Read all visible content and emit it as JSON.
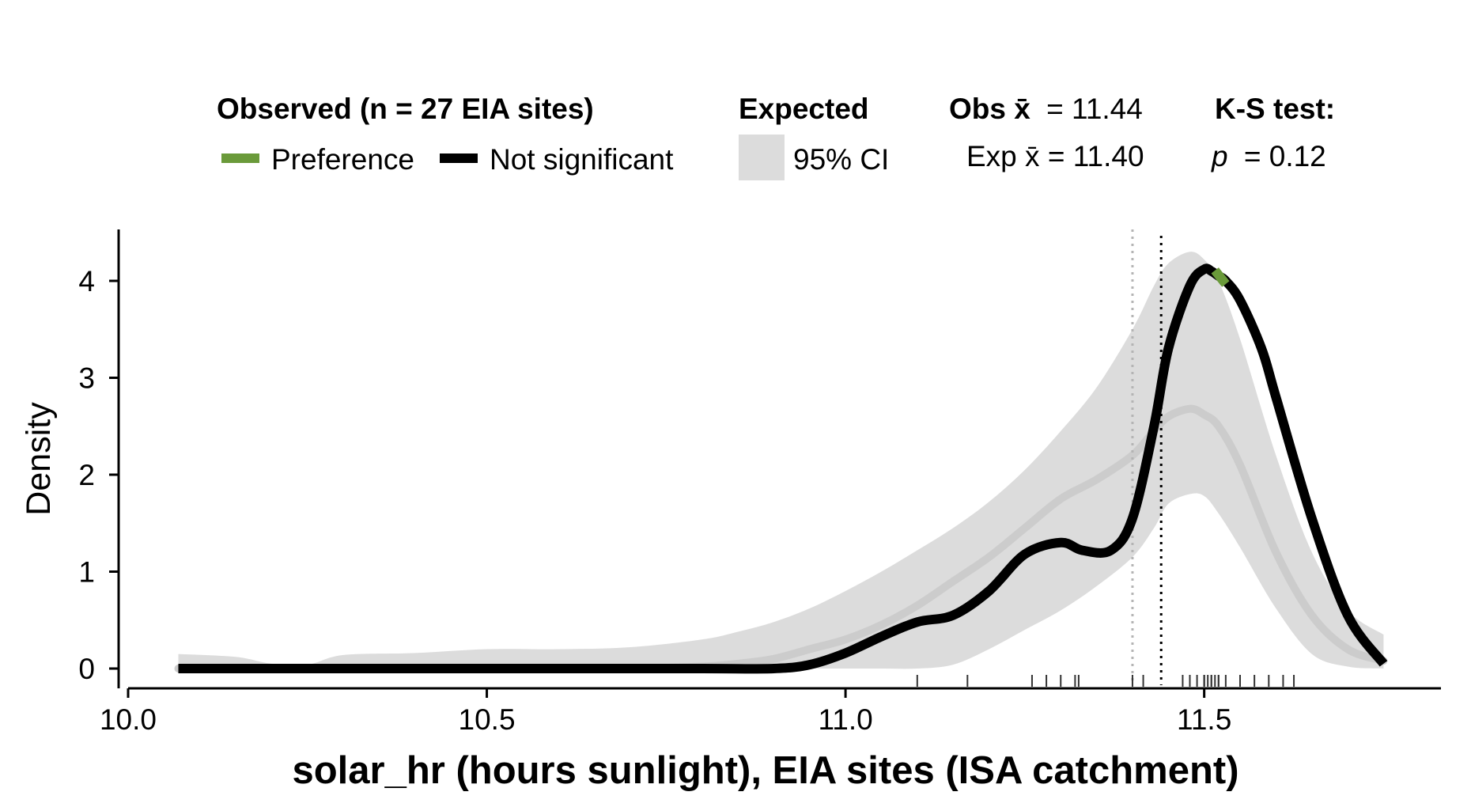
{
  "legend": {
    "observed_title": "Observed (n = 27 EIA sites)",
    "preference_label": "Preference",
    "not_significant_label": "Not significant",
    "expected_title": "Expected",
    "ci_label": "95% CI",
    "obs_mean_prefix": "Obs x̄",
    "obs_mean_value": "= 11.44",
    "exp_mean_text": "Exp x̄ = 11.40",
    "ks_title": "K-S test:",
    "p_symbol": "p",
    "p_value": "= 0.12"
  },
  "colors": {
    "preference": "#6a9a3a",
    "not_significant": "#000000",
    "ci_band": "#dcdcdc",
    "expected_line": "#cccccc",
    "obs_mean_line": "#000000",
    "exp_mean_line": "#b4b4b4"
  },
  "chart_data": {
    "type": "area",
    "xlabel": "solar_hr (hours sunlight), EIA sites (ISA catchment)",
    "ylabel": "Density",
    "xlim": [
      10.0,
      11.83
    ],
    "ylim": [
      0,
      4.4
    ],
    "xticks": [
      "10.0",
      "10.5",
      "11.0",
      "11.5"
    ],
    "yticks": [
      "0",
      "1",
      "2",
      "3",
      "4"
    ],
    "grid": false,
    "legend_position": "top",
    "observed_mean": 11.44,
    "expected_mean": 11.4,
    "ks_p": 0.12,
    "ci_x": [
      10.07,
      10.15,
      10.2,
      10.25,
      10.3,
      10.4,
      10.5,
      10.6,
      10.7,
      10.8,
      10.85,
      10.9,
      10.95,
      11.0,
      11.05,
      11.1,
      11.15,
      11.2,
      11.25,
      11.3,
      11.35,
      11.4,
      11.43,
      11.45,
      11.48,
      11.5,
      11.52,
      11.55,
      11.6,
      11.65,
      11.7,
      11.75
    ],
    "ci_upper": [
      0.15,
      0.12,
      0.05,
      0.04,
      0.14,
      0.16,
      0.2,
      0.2,
      0.22,
      0.3,
      0.38,
      0.48,
      0.62,
      0.8,
      1.0,
      1.22,
      1.45,
      1.72,
      2.05,
      2.45,
      2.9,
      3.5,
      3.95,
      4.18,
      4.3,
      4.22,
      4.0,
      3.4,
      2.2,
      1.2,
      0.6,
      0.35
    ],
    "ci_lower": [
      0,
      0,
      0,
      0,
      0,
      0,
      0,
      0,
      0,
      0,
      0,
      0,
      0,
      0,
      0,
      0,
      0.04,
      0.2,
      0.4,
      0.6,
      0.85,
      1.15,
      1.45,
      1.7,
      1.8,
      1.78,
      1.6,
      1.25,
      0.62,
      0.15,
      0.02,
      0
    ],
    "expected_y": [
      0,
      0,
      0,
      0,
      0,
      0,
      0,
      0,
      0,
      0.02,
      0.05,
      0.1,
      0.2,
      0.3,
      0.45,
      0.65,
      0.9,
      1.15,
      1.45,
      1.75,
      1.95,
      2.2,
      2.45,
      2.6,
      2.68,
      2.62,
      2.5,
      2.1,
      1.2,
      0.55,
      0.2,
      0.08
    ],
    "observed": {
      "x": [
        10.07,
        10.2,
        10.4,
        10.6,
        10.8,
        10.9,
        10.95,
        11.0,
        11.05,
        11.1,
        11.15,
        11.2,
        11.25,
        11.3,
        11.33,
        11.37,
        11.4,
        11.43,
        11.45,
        11.48,
        11.5,
        11.51,
        11.52,
        11.53,
        11.55,
        11.58,
        11.6,
        11.65,
        11.7,
        11.75
      ],
      "y": [
        0,
        0,
        0,
        0,
        0,
        0.0,
        0.04,
        0.16,
        0.33,
        0.48,
        0.55,
        0.8,
        1.18,
        1.3,
        1.22,
        1.22,
        1.55,
        2.5,
        3.3,
        3.95,
        4.12,
        4.1,
        4.05,
        4.0,
        3.8,
        3.3,
        2.8,
        1.55,
        0.55,
        0.05
      ],
      "segments": [
        {
          "status": "Not significant",
          "x_from": 10.07,
          "x_to": 11.515
        },
        {
          "status": "Preference",
          "x_from": 11.515,
          "x_to": 11.53
        },
        {
          "status": "Not significant",
          "x_from": 11.53,
          "x_to": 11.75
        }
      ]
    },
    "rug": [
      11.1,
      11.17,
      11.26,
      11.28,
      11.3,
      11.32,
      11.325,
      11.4,
      11.415,
      11.47,
      11.48,
      11.49,
      11.5,
      11.505,
      11.51,
      11.515,
      11.52,
      11.53,
      11.55,
      11.57,
      11.59,
      11.61,
      11.625,
      11.5,
      11.51,
      11.5,
      11.52
    ]
  }
}
